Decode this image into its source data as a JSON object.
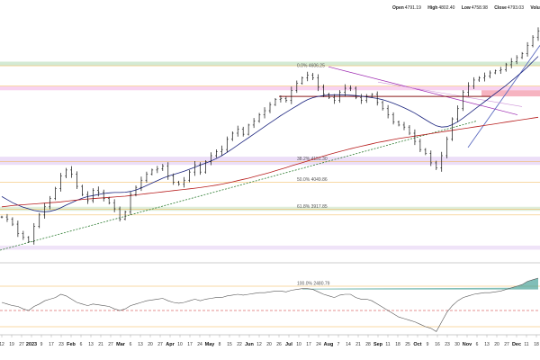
{
  "header": {
    "open_label": "Open",
    "open": "4791.19",
    "high_label": "High",
    "high": "4802.40",
    "low_label": "Low",
    "low": "4758.98",
    "close_label": "Close",
    "close": "4793.03",
    "volume_label": "Volu"
  },
  "chart_data": [
    {
      "type": "ohlc",
      "panel": "price",
      "x_start_label": "12",
      "x_end_label": "Dec 11 / 18",
      "y_scale": {
        "min": 3700,
        "max": 4880,
        "note": "inferred from Fibonacci levels"
      },
      "close_series": [
        3880,
        3870,
        3845,
        3800,
        3780,
        3760,
        3835,
        3890,
        3930,
        3970,
        4020,
        4080,
        4110,
        4090,
        4030,
        3990,
        3960,
        4010,
        4000,
        3970,
        3950,
        3920,
        3870,
        3905,
        3990,
        4025,
        4060,
        4090,
        4110,
        4115,
        4130,
        4080,
        4050,
        4040,
        4060,
        4100,
        4135,
        4100,
        4150,
        4180,
        4200,
        4210,
        4260,
        4290,
        4310,
        4285,
        4330,
        4350,
        4380,
        4400,
        4430,
        4455,
        4460,
        4450,
        4500,
        4535,
        4560,
        4575,
        4560,
        4515,
        4480,
        4465,
        4450,
        4490,
        4510,
        4510,
        4465,
        4450,
        4470,
        4480,
        4440,
        4410,
        4380,
        4345,
        4330,
        4320,
        4290,
        4250,
        4210,
        4190,
        4145,
        4120,
        4180,
        4260,
        4360,
        4410,
        4490,
        4520,
        4550,
        4560,
        4570,
        4585,
        4595,
        4600,
        4625,
        4640,
        4660,
        4680,
        4720,
        4760,
        4790
      ],
      "moving_averages": [
        {
          "color": "#1a237e",
          "values": [
            3980,
            3965,
            3950,
            3938,
            3928,
            3920,
            3912,
            3908,
            3905,
            3908,
            3915,
            3925,
            3938,
            3950,
            3962,
            3972,
            3980,
            3985,
            3990,
            3995,
            3998,
            4000,
            4000,
            4001,
            4005,
            4012,
            4022,
            4034,
            4046,
            4058,
            4070,
            4080,
            4088,
            4096,
            4104,
            4114,
            4124,
            4134,
            4144,
            4154,
            4166,
            4180,
            4196,
            4214,
            4232,
            4250,
            4268,
            4286,
            4304,
            4322,
            4340,
            4358,
            4376,
            4392,
            4408,
            4424,
            4440,
            4454,
            4464,
            4470,
            4474,
            4477,
            4478,
            4478,
            4477,
            4476,
            4474,
            4471,
            4468,
            4464,
            4460,
            4454,
            4446,
            4436,
            4426,
            4414,
            4402,
            4388,
            4372,
            4356,
            4340,
            4326,
            4320,
            4322,
            4332,
            4346,
            4364,
            4384,
            4404,
            4424,
            4444,
            4464,
            4484,
            4504,
            4524,
            4546,
            4568,
            4590,
            4614,
            4640,
            4666
          ]
        },
        {
          "color": "#b71c1c",
          "values": [
            3930,
            3933,
            3936,
            3938,
            3940,
            3942,
            3944,
            3946,
            3948,
            3950,
            3952,
            3954,
            3957,
            3960,
            3963,
            3966,
            3968,
            3970,
            3972,
            3974,
            3976,
            3978,
            3980,
            3982,
            3985,
            3988,
            3991,
            3994,
            3997,
            4000,
            4003,
            4006,
            4009,
            4012,
            4015,
            4018,
            4021,
            4024,
            4028,
            4032,
            4036,
            4041,
            4046,
            4052,
            4058,
            4064,
            4070,
            4077,
            4084,
            4091,
            4098,
            4106,
            4114,
            4122,
            4130,
            4138,
            4146,
            4154,
            4162,
            4170,
            4178,
            4186,
            4193,
            4200,
            4207,
            4214,
            4220,
            4226,
            4232,
            4238,
            4244,
            4249,
            4254,
            4259,
            4264,
            4268,
            4272,
            4276,
            4280,
            4284,
            4288,
            4292,
            4296,
            4300,
            4304,
            4308,
            4312,
            4316,
            4320,
            4324,
            4328,
            4332,
            4336,
            4340,
            4344,
            4348,
            4352,
            4356,
            4360,
            4364,
            4368
          ]
        }
      ],
      "fib_labels": [
        "0.0% 4606.25",
        "38.2% 4151.30",
        "50.0% 4049.86",
        "61.8% 3917.85"
      ],
      "x_ticks": [
        "12",
        "19",
        "27",
        "2023",
        "9",
        "17",
        "23",
        "Feb",
        "6",
        "13",
        "21",
        "27",
        "Mar",
        "6",
        "13",
        "20",
        "27",
        "Apr",
        "10",
        "17",
        "24",
        "May",
        "8",
        "15",
        "22",
        "Jun",
        "12",
        "20",
        "26",
        "Jul",
        "10",
        "17",
        "24",
        "Aug",
        "7",
        "14",
        "21",
        "28",
        "Sep",
        "11",
        "18",
        "25",
        "Oct",
        "9",
        "16",
        "23",
        "30",
        "Nov",
        "6",
        "13",
        "20",
        "27",
        "Dec",
        "11",
        "18"
      ]
    },
    {
      "type": "line",
      "panel": "indicator",
      "y_scale": {
        "min": 20,
        "max": 100
      },
      "level_label": "100.0% 2480.79",
      "values": [
        60,
        58,
        56,
        55,
        52,
        50,
        55,
        58,
        62,
        64,
        66,
        70,
        68,
        64,
        60,
        58,
        56,
        58,
        57,
        56,
        55,
        52,
        50,
        52,
        56,
        58,
        60,
        62,
        63,
        64,
        65,
        62,
        60,
        59,
        60,
        62,
        64,
        62,
        64,
        65,
        66,
        66,
        68,
        69,
        70,
        69,
        70,
        71,
        72,
        72,
        73,
        74,
        74,
        73,
        75,
        76,
        77,
        77,
        76,
        73,
        70,
        68,
        66,
        69,
        70,
        70,
        66,
        64,
        64,
        62,
        58,
        54,
        50,
        46,
        42,
        40,
        38,
        36,
        33,
        30,
        28,
        24,
        36,
        48,
        56,
        62,
        66,
        68,
        70,
        71,
        72,
        72,
        73,
        74,
        76,
        78,
        80,
        82,
        86,
        88,
        90
      ]
    }
  ]
}
